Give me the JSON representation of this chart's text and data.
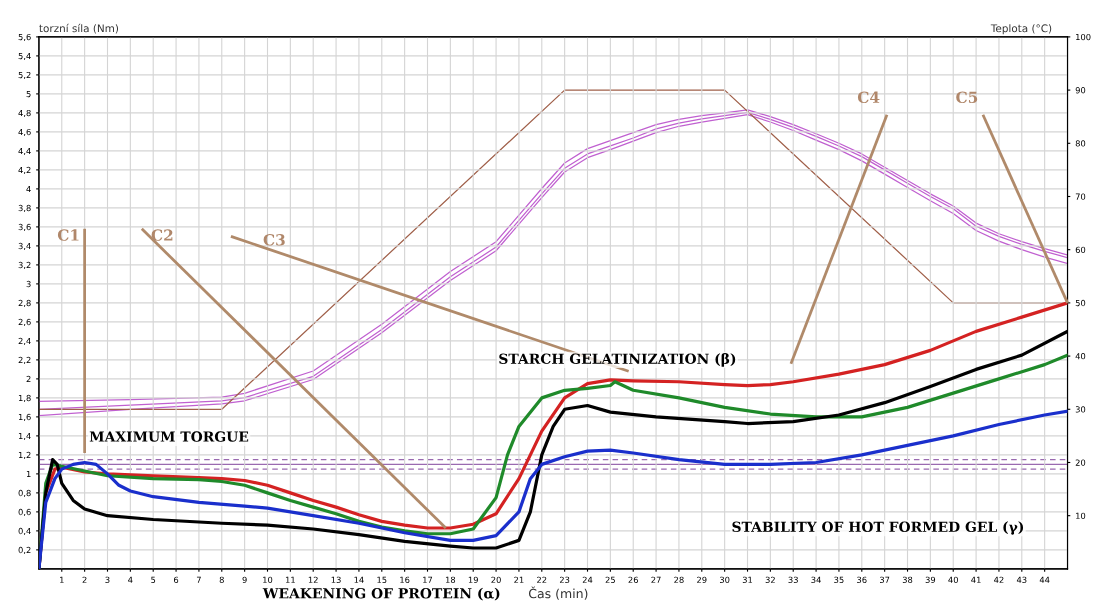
{
  "chart_data": {
    "type": "line",
    "xlabel": "Čas (min)",
    "ylabel": "torzní síla (Nm)",
    "y2label": "Teplota (°C)",
    "xlim": [
      0,
      45
    ],
    "xticks": [
      1,
      2,
      3,
      4,
      5,
      6,
      7,
      8,
      9,
      10,
      11,
      12,
      13,
      14,
      15,
      16,
      17,
      18,
      19,
      20,
      21,
      22,
      23,
      24,
      25,
      26,
      27,
      28,
      29,
      30,
      31,
      32,
      33,
      34,
      35,
      36,
      37,
      38,
      39,
      40,
      41,
      42,
      43,
      44
    ],
    "ylim": [
      0,
      5.6
    ],
    "yticks": [
      {
        "value": 0.2,
        "label": "0,2"
      },
      {
        "value": 0.4,
        "label": "0,4"
      },
      {
        "value": 0.6,
        "label": "0,6"
      },
      {
        "value": 0.8,
        "label": "0,8"
      },
      {
        "value": 1,
        "label": "1"
      },
      {
        "value": 1.2,
        "label": "1,2"
      },
      {
        "value": 1.4,
        "label": "1,4"
      },
      {
        "value": 1.6,
        "label": "1,6"
      },
      {
        "value": 1.8,
        "label": "1,8"
      },
      {
        "value": 2,
        "label": "2"
      },
      {
        "value": 2.2,
        "label": "2,2"
      },
      {
        "value": 2.4,
        "label": "2,4"
      },
      {
        "value": 2.6,
        "label": "2,6"
      },
      {
        "value": 2.8,
        "label": "2,8"
      },
      {
        "value": 3,
        "label": "3"
      },
      {
        "value": 3.2,
        "label": "3,2"
      },
      {
        "value": 3.4,
        "label": "3,4"
      },
      {
        "value": 3.6,
        "label": "3,6"
      },
      {
        "value": 3.8,
        "label": "3,8"
      },
      {
        "value": 4,
        "label": "4"
      },
      {
        "value": 4.2,
        "label": "4,2"
      },
      {
        "value": 4.4,
        "label": "4,4"
      },
      {
        "value": 4.6,
        "label": "4,6"
      },
      {
        "value": 4.8,
        "label": "4,8"
      },
      {
        "value": 5,
        "label": "5"
      },
      {
        "value": 5.2,
        "label": "5,2"
      },
      {
        "value": 5.4,
        "label": "5,4"
      },
      {
        "value": 5.6,
        "label": "5,6"
      }
    ],
    "y2lim": [
      0,
      100
    ],
    "y2ticks": [
      10,
      20,
      30,
      40,
      50,
      60,
      70,
      80,
      90,
      100
    ],
    "grid": true,
    "series": [
      {
        "color": "#d42222",
        "x": [
          0,
          0.3,
          0.7,
          1,
          2,
          3,
          5,
          7,
          8,
          9,
          10,
          11,
          12,
          13,
          14,
          15,
          16,
          17,
          18,
          19,
          20,
          21,
          22,
          23,
          24,
          25,
          26,
          28,
          30,
          31,
          32,
          33,
          35,
          37,
          39,
          41,
          43,
          45
        ],
        "values": [
          0,
          0.8,
          1.05,
          1.07,
          1.02,
          1.0,
          0.98,
          0.96,
          0.95,
          0.93,
          0.88,
          0.8,
          0.72,
          0.65,
          0.57,
          0.5,
          0.46,
          0.43,
          0.43,
          0.47,
          0.58,
          0.95,
          1.45,
          1.8,
          1.95,
          1.99,
          1.98,
          1.97,
          1.94,
          1.93,
          1.94,
          1.97,
          2.05,
          2.15,
          2.3,
          2.5,
          2.65,
          2.8
        ]
      },
      {
        "color": "#1f8a2a",
        "x": [
          0,
          0.3,
          0.6,
          1,
          2,
          3,
          5,
          7,
          8,
          9,
          10,
          11,
          12,
          13,
          14,
          15,
          16,
          17,
          18,
          19,
          20,
          20.5,
          21,
          22,
          23,
          24,
          25,
          25.2,
          26,
          28,
          30,
          32,
          34,
          36,
          38,
          40,
          42,
          44,
          45
        ],
        "values": [
          0,
          0.9,
          1.1,
          1.08,
          1.03,
          0.98,
          0.95,
          0.94,
          0.92,
          0.88,
          0.8,
          0.72,
          0.65,
          0.58,
          0.5,
          0.44,
          0.4,
          0.37,
          0.37,
          0.42,
          0.75,
          1.2,
          1.5,
          1.8,
          1.88,
          1.9,
          1.93,
          1.97,
          1.88,
          1.8,
          1.7,
          1.63,
          1.6,
          1.6,
          1.7,
          1.85,
          2.0,
          2.15,
          2.25
        ]
      },
      {
        "color": "#000000",
        "x": [
          0,
          0.3,
          0.6,
          0.8,
          1,
          1.5,
          2,
          3,
          5,
          8,
          10,
          12,
          14,
          16,
          18,
          19,
          20,
          21,
          21.5,
          22,
          22.5,
          23,
          24,
          25,
          27,
          30,
          31,
          33,
          35,
          37,
          39,
          41,
          43,
          45
        ],
        "values": [
          0,
          0.8,
          1.15,
          1.1,
          0.9,
          0.72,
          0.63,
          0.56,
          0.52,
          0.48,
          0.46,
          0.42,
          0.36,
          0.29,
          0.24,
          0.22,
          0.22,
          0.3,
          0.6,
          1.2,
          1.5,
          1.68,
          1.72,
          1.65,
          1.6,
          1.55,
          1.53,
          1.55,
          1.62,
          1.75,
          1.92,
          2.1,
          2.25,
          2.5
        ]
      },
      {
        "color": "#1a2fcc",
        "x": [
          0,
          0.3,
          0.7,
          1,
          1.5,
          2,
          2.5,
          3,
          3.5,
          4,
          5,
          7,
          9,
          10,
          12,
          14,
          16,
          18,
          19,
          20,
          21,
          21.5,
          22,
          23,
          24,
          25,
          26,
          28,
          30,
          32,
          34,
          36,
          38,
          40,
          42,
          44,
          45
        ],
        "values": [
          0,
          0.7,
          0.95,
          1.05,
          1.1,
          1.12,
          1.1,
          1.0,
          0.88,
          0.82,
          0.76,
          0.7,
          0.66,
          0.64,
          0.56,
          0.48,
          0.38,
          0.3,
          0.3,
          0.35,
          0.6,
          0.95,
          1.1,
          1.18,
          1.24,
          1.25,
          1.22,
          1.15,
          1.1,
          1.1,
          1.12,
          1.2,
          1.3,
          1.4,
          1.52,
          1.62,
          1.66
        ]
      },
      {
        "color": "#c060d0",
        "axis": "y2",
        "x": [
          0,
          4,
          8,
          9,
          12,
          15,
          18,
          20,
          21,
          22,
          23,
          24,
          25,
          26,
          27,
          28,
          29,
          30,
          31,
          32,
          33,
          34,
          35,
          36,
          37,
          38,
          39,
          40,
          41,
          42,
          43,
          44,
          45
        ],
        "values": [
          31.5,
          31.8,
          32.3,
          33,
          37.2,
          46,
          55.9,
          61.5,
          66.5,
          71.5,
          76.3,
          79,
          80.5,
          82,
          83.5,
          84.5,
          85.2,
          85.7,
          86.3,
          85,
          83.5,
          81.8,
          80,
          78,
          75.5,
          73,
          70.5,
          68.2,
          65,
          63,
          61.5,
          60.2,
          59
        ]
      },
      {
        "color": "#c060d0",
        "axis": "y2",
        "x": [
          0,
          4,
          8,
          9,
          12,
          15,
          18,
          20,
          21,
          22,
          23,
          24,
          25,
          26,
          27,
          28,
          29,
          30,
          31,
          32,
          33,
          34,
          35,
          36,
          37,
          38,
          39,
          40,
          41,
          42,
          43,
          44,
          45
        ],
        "values": [
          30,
          30.8,
          31.6,
          32.2,
          36.2,
          45,
          54.9,
          60.5,
          65.5,
          70.5,
          75.3,
          78,
          79.5,
          81,
          82.7,
          83.8,
          84.6,
          85.2,
          85.8,
          84.5,
          83,
          81.3,
          79.5,
          77.5,
          75,
          72.5,
          70,
          67.7,
          64.4,
          62.5,
          61,
          59.7,
          58.5
        ]
      },
      {
        "color": "#c060d0",
        "axis": "y2",
        "x": [
          0,
          4,
          8,
          9,
          12,
          15,
          18,
          20,
          21,
          22,
          23,
          24,
          25,
          26,
          27,
          28,
          29,
          30,
          31,
          32,
          33,
          34,
          35,
          36,
          37,
          38,
          39,
          40,
          41,
          42,
          43,
          44,
          45
        ],
        "values": [
          28.8,
          30,
          31,
          31.6,
          35.6,
          44.4,
          54.2,
          59.8,
          64.8,
          69.8,
          74.6,
          77.3,
          78.8,
          80.4,
          82,
          83.2,
          84,
          84.7,
          85.4,
          84,
          82.4,
          80.6,
          78.8,
          76.7,
          74.2,
          71.7,
          69.2,
          66.8,
          63.6,
          61.6,
          60,
          58.6,
          57.4
        ]
      },
      {
        "color": "#a0604a",
        "axis": "y2",
        "x": [
          0,
          8,
          23,
          30,
          40,
          45
        ],
        "values": [
          30,
          30,
          90,
          90,
          50,
          50
        ]
      }
    ],
    "ref_lines": [
      {
        "axis": "y",
        "value": 1.15,
        "color": "#9a6ab0",
        "line_style": "dashed"
      },
      {
        "axis": "y",
        "value": 1.1,
        "color": "#9a6ab0",
        "line_style": "solid"
      },
      {
        "axis": "y",
        "value": 1.05,
        "color": "#9a6ab0",
        "line_style": "dashed"
      }
    ],
    "annotations": [
      "C1",
      {
        "text": "C2",
        "x": 17.8,
        "y": 0.43
      },
      "C3",
      "C4",
      {
        "text": "C5",
        "x": 45,
        "y": 2.8
      },
      "MAXIMUM TORGUE",
      "STARCH GELATINIZATION (β)",
      "STABILITY OF HOT FORMED GEL (γ)",
      "WEAKENING OF PROTEIN (α)"
    ]
  }
}
